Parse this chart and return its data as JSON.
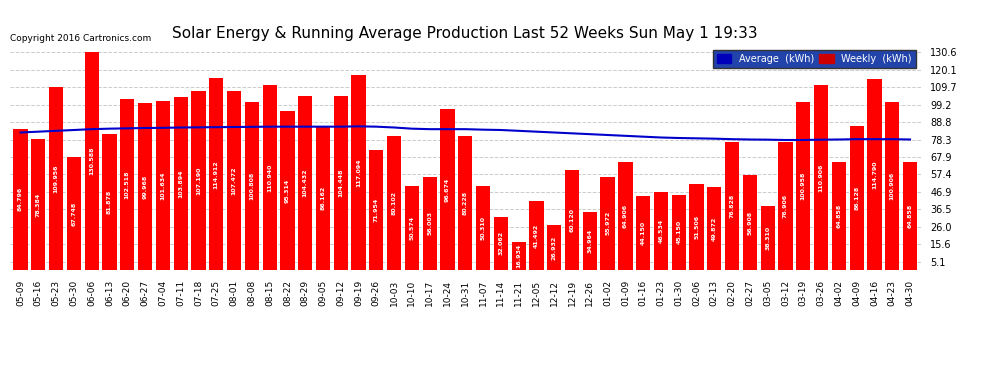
{
  "title": "Solar Energy & Running Average Production Last 52 Weeks Sun May 1 19:33",
  "copyright": "Copyright 2016 Cartronics.com",
  "bar_color": "#ff0000",
  "avg_line_color": "#0000cc",
  "background_color": "#ffffff",
  "plot_bg_color": "#ffffff",
  "grid_color": "#cccccc",
  "categories": [
    "05-09",
    "05-16",
    "05-23",
    "05-30",
    "06-06",
    "06-13",
    "06-20",
    "06-27",
    "07-04",
    "07-11",
    "07-18",
    "07-25",
    "08-01",
    "08-08",
    "08-15",
    "08-22",
    "08-29",
    "09-05",
    "09-12",
    "09-19",
    "09-26",
    "10-03",
    "10-10",
    "10-17",
    "10-24",
    "10-31",
    "11-07",
    "11-14",
    "11-21",
    "12-05",
    "12-12",
    "12-19",
    "12-26",
    "01-02",
    "01-09",
    "01-16",
    "01-23",
    "01-30",
    "02-06",
    "02-13",
    "02-20",
    "02-27",
    "03-05",
    "03-12",
    "03-19",
    "03-26",
    "04-02",
    "04-09",
    "04-16",
    "04-23",
    "04-30"
  ],
  "weekly_values": [
    84.796,
    78.384,
    109.956,
    67.748,
    130.588,
    81.878,
    102.518,
    99.968,
    101.634,
    103.894,
    107.19,
    114.912,
    107.472,
    100.808,
    110.94,
    95.3141,
    104.432,
    86.162,
    104.448,
    117.094,
    71.954,
    80.102,
    50.574,
    56.003,
    96.674,
    80.228,
    50.31,
    32.062,
    16.934,
    41.492,
    26.932,
    60.12,
    34.964,
    55.972,
    64.906,
    44.15,
    46.534,
    45.15,
    51.506,
    49.872,
    76.828,
    56.908,
    38.31,
    76.906,
    100.958,
    110.906,
    64.858,
    86.128,
    114.79,
    100.906,
    64.858
  ],
  "avg_values": [
    82.5,
    83.0,
    83.5,
    84.0,
    84.5,
    84.8,
    85.0,
    85.2,
    85.3,
    85.5,
    85.6,
    85.7,
    85.8,
    85.9,
    86.0,
    86.0,
    86.0,
    86.0,
    86.0,
    86.2,
    86.0,
    85.5,
    84.8,
    84.5,
    84.5,
    84.5,
    84.2,
    84.0,
    83.5,
    83.0,
    82.5,
    82.0,
    81.5,
    81.0,
    80.5,
    80.0,
    79.5,
    79.2,
    79.0,
    78.8,
    78.5,
    78.3,
    78.2,
    78.0,
    78.0,
    78.2,
    78.3,
    78.5,
    78.5,
    78.5,
    78.3
  ],
  "yticks": [
    5.1,
    15.6,
    26.0,
    36.5,
    46.9,
    57.4,
    67.9,
    78.3,
    88.8,
    99.2,
    109.7,
    120.1,
    130.6
  ],
  "ylim": [
    0,
    135
  ],
  "legend_avg_color": "#0000bb",
  "legend_weekly_color": "#cc0000"
}
